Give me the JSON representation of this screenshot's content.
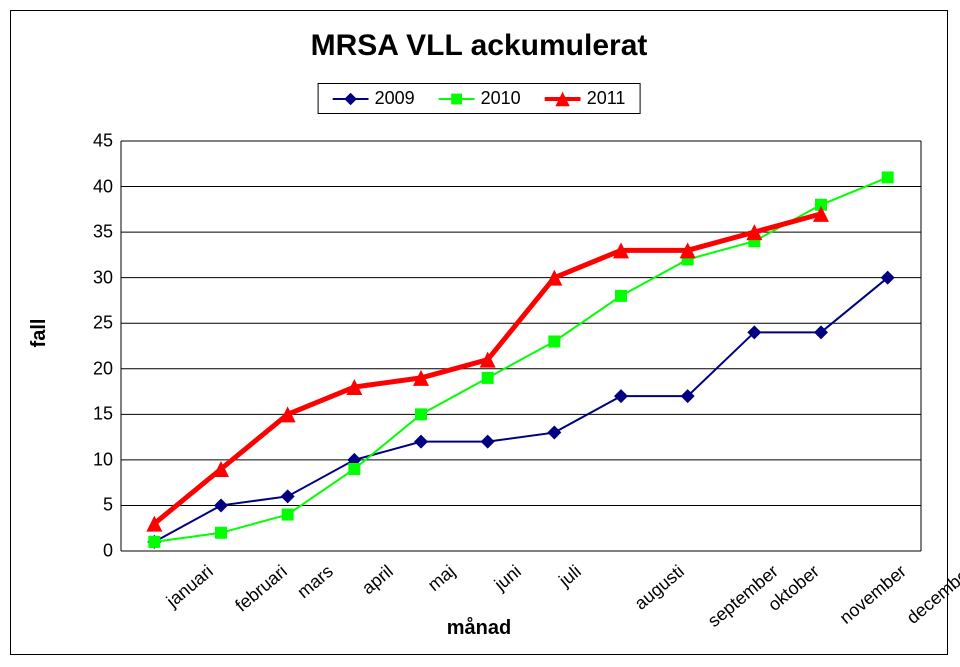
{
  "chart": {
    "type": "line",
    "title": "MRSA VLL ackumulerat",
    "title_fontsize": 30,
    "ylabel": "fall",
    "xlabel": "månad",
    "axis_label_fontsize": 20,
    "tick_fontsize": 18,
    "categories": [
      "januari",
      "februari",
      "mars",
      "april",
      "maj",
      "juni",
      "juli",
      "augusti",
      "september",
      "oktober",
      "november",
      "december"
    ],
    "ylim": [
      0,
      45
    ],
    "ytick_step": 5,
    "yticks": [
      0,
      5,
      10,
      15,
      20,
      25,
      30,
      35,
      40,
      45
    ],
    "grid_color": "#000000",
    "grid_width": 1,
    "background_color": "#ffffff",
    "plot_border": true,
    "series": [
      {
        "name": "2009",
        "color": "#000080",
        "line_width": 2,
        "marker": "diamond",
        "marker_size": 14,
        "values": [
          1,
          5,
          6,
          10,
          12,
          12,
          13,
          17,
          17,
          24,
          24,
          30
        ]
      },
      {
        "name": "2010",
        "color": "#00ff00",
        "line_width": 2,
        "marker": "square",
        "marker_size": 12,
        "values": [
          1,
          2,
          4,
          9,
          15,
          19,
          23,
          28,
          32,
          34,
          38,
          41
        ]
      },
      {
        "name": "2011",
        "color": "#ff0000",
        "line_width": 5,
        "marker": "triangle",
        "marker_size": 16,
        "values": [
          3,
          9,
          15,
          18,
          19,
          21,
          30,
          33,
          33,
          35,
          37
        ]
      }
    ]
  }
}
